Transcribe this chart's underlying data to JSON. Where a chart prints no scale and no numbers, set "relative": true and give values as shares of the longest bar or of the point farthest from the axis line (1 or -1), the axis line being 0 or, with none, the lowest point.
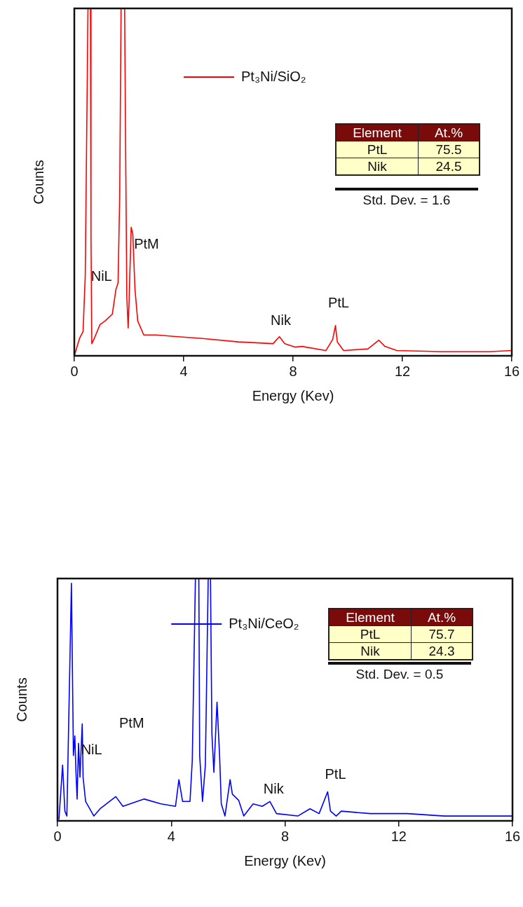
{
  "chart_data": [
    {
      "type": "line",
      "relative": true,
      "xlabel": "Energy (Kev)",
      "ylabel": "Counts",
      "xlim": [
        0,
        16
      ],
      "xticks": [
        0,
        4,
        8,
        12,
        16
      ],
      "grid": false,
      "legend": "top",
      "marker": "none",
      "series": [
        {
          "name": "Pt₃Ni/SiO₂",
          "color": "#ff0000",
          "x": [
            0,
            0.19,
            0.32,
            0.4,
            0.5,
            0.59,
            0.61,
            0.64,
            0.73,
            0.94,
            1.12,
            1.39,
            1.52,
            1.6,
            1.66,
            1.71,
            1.84,
            1.87,
            1.92,
            1.97,
            2.0,
            2.08,
            2.14,
            2.22,
            2.32,
            2.54,
            3.0,
            3.79,
            4.68,
            6.0,
            7.27,
            7.5,
            7.7,
            8.07,
            8.33,
            9.2,
            9.45,
            9.55,
            9.62,
            9.85,
            10.74,
            11.14,
            11.36,
            11.8,
            13.4,
            15.2,
            16
          ],
          "values": [
            0,
            0.05,
            0.07,
            0.23,
            1,
            1,
            0.34,
            0.035,
            0.05,
            0.09,
            0.1,
            0.12,
            0.19,
            0.21,
            0.46,
            1,
            1,
            0.67,
            0.17,
            0.08,
            0.15,
            0.37,
            0.35,
            0.19,
            0.1,
            0.06,
            0.06,
            0.055,
            0.05,
            0.04,
            0.035,
            0.055,
            0.035,
            0.025,
            0.027,
            0.015,
            0.047,
            0.087,
            0.04,
            0.015,
            0.02,
            0.045,
            0.027,
            0.015,
            0.012,
            0.012,
            0.015
          ]
        }
      ],
      "annotations": [
        "NiL",
        "PtM",
        "Nik",
        "PtL",
        "Element",
        "At.%",
        "PtL",
        "75.5",
        "Nik",
        "24.5",
        "Std. Dev. = 1.6"
      ]
    },
    {
      "type": "line",
      "relative": true,
      "xlabel": "Energy (Kev)",
      "ylabel": "Counts",
      "xlim": [
        0,
        16
      ],
      "xticks": [
        0,
        4,
        8,
        12,
        16
      ],
      "grid": false,
      "legend": "top",
      "marker": "none",
      "series": [
        {
          "name": "Pt₃Ni/CeO₂",
          "color": "#0000ff",
          "x": [
            0.05,
            0.18,
            0.26,
            0.33,
            0.49,
            0.56,
            0.61,
            0.65,
            0.69,
            0.74,
            0.79,
            0.87,
            0.9,
            0.99,
            1.28,
            1.5,
            2.05,
            2.3,
            3.05,
            3.64,
            4.15,
            4.27,
            4.4,
            4.66,
            4.74,
            4.85,
            4.97,
            5.0,
            5.1,
            5.2,
            5.3,
            5.38,
            5.43,
            5.5,
            5.61,
            5.7,
            5.76,
            5.89,
            6.07,
            6.15,
            6.37,
            6.55,
            6.88,
            7.2,
            7.47,
            7.7,
            8.45,
            8.88,
            9.2,
            9.5,
            9.6,
            9.8,
            9.98,
            11.0,
            12.3,
            13.6,
            15.3,
            16
          ],
          "values": [
            0.005,
            0.23,
            0.04,
            0.02,
            0.98,
            0.27,
            0.35,
            0.2,
            0.09,
            0.32,
            0.18,
            0.4,
            0.18,
            0.08,
            0.02,
            0.05,
            0.1,
            0.06,
            0.09,
            0.07,
            0.06,
            0.17,
            0.08,
            0.08,
            0.25,
            1,
            1,
            0.27,
            0.08,
            0.23,
            1,
            1,
            0.36,
            0.2,
            0.49,
            0.27,
            0.07,
            0.02,
            0.17,
            0.11,
            0.085,
            0.02,
            0.07,
            0.06,
            0.08,
            0.03,
            0.02,
            0.05,
            0.03,
            0.12,
            0.04,
            0.02,
            0.04,
            0.03,
            0.03,
            0.02,
            0.02,
            0.02
          ]
        }
      ],
      "annotations": [
        "NiL",
        "PtM",
        "Nik",
        "PtL",
        "Element",
        "At.%",
        "PtL",
        "75.7",
        "Nik",
        "24.3",
        "Std. Dev. = 0.5"
      ]
    }
  ]
}
